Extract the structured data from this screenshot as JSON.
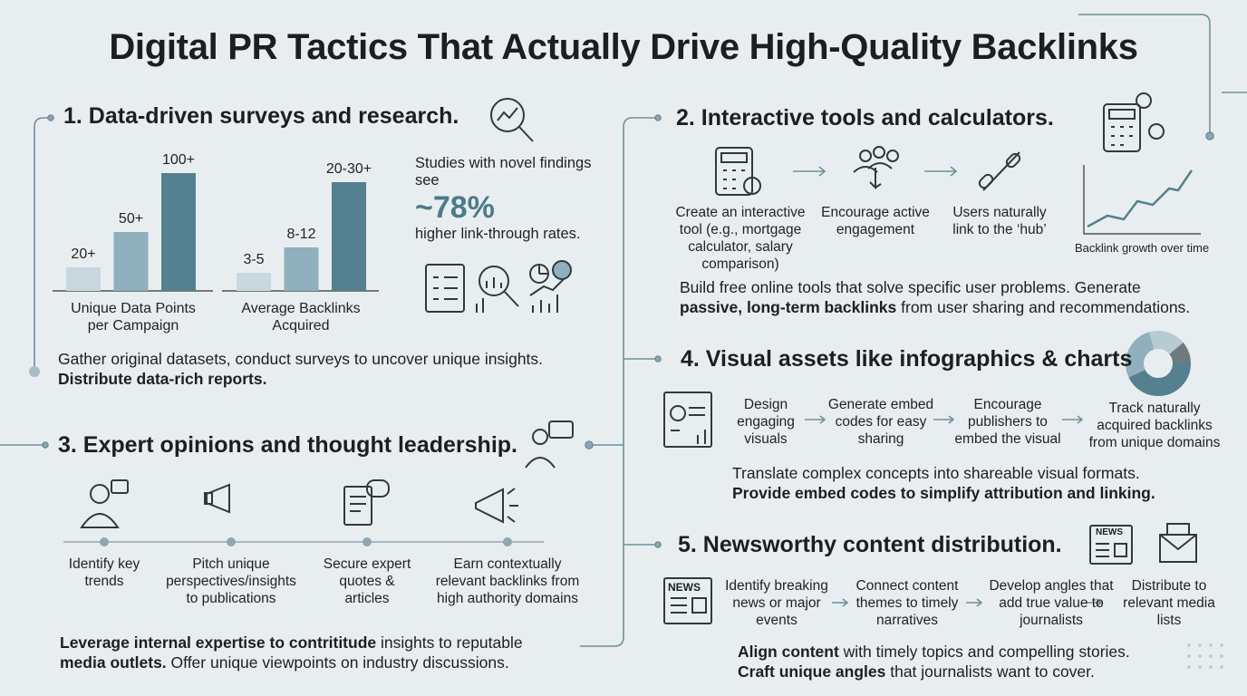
{
  "title": "Digital PR Tactics That Actually Drive High-Quality Backlinks",
  "sections": [
    {
      "heading": "1. Data-driven surveys and research.",
      "charts": [
        {
          "caption": "Unique Data Points per Campaign",
          "values": [
            20,
            50,
            100
          ],
          "value_labels": [
            "20+",
            "50+",
            "100+"
          ],
          "ylim": [
            0,
            100
          ],
          "colors": [
            "#c8d8de",
            "#8fb0bc",
            "#55808f"
          ]
        },
        {
          "caption": "Average Backlinks Acquired",
          "values": [
            5,
            12,
            30
          ],
          "value_labels": [
            "3-5",
            "8-12",
            "20-30+"
          ],
          "ylim": [
            0,
            30
          ],
          "colors": [
            "#c8d8de",
            "#8fb0bc",
            "#55808f"
          ]
        }
      ],
      "stat": {
        "lead": "Studies with novel findings see",
        "figure": "~78%",
        "tail": "higher link-through rates."
      },
      "description": [
        {
          "text": "Gather original datasets, conduct surveys to uncover unique insights."
        },
        {
          "strong": "Distribute data-rich reports."
        }
      ]
    },
    {
      "heading": "2. Interactive tools and calculators.",
      "steps": [
        "Create an interactive tool (e.g., mortgage calculator, salary comparison)",
        "Encourage active engagement",
        "Users naturally link to the ‘hub’"
      ],
      "chart_caption": "Backlink growth over time",
      "description": [
        {
          "text": "Build free online tools that solve specific user problems. Generate"
        },
        {
          "strong": "passive, long-term backlinks",
          "text": " from user sharing and recommendations."
        }
      ]
    },
    {
      "heading": "3. Expert opinions and thought leadership.",
      "steps": [
        "Identify key trends",
        "Pitch unique perspectives/insights to publications",
        "Secure expert quotes & articles",
        "Earn contextually relevant backlinks from high authority domains"
      ],
      "description": [
        {
          "strong": "Leverage internal expertise to contrititude",
          "text": " insights to reputable"
        },
        {
          "strong": "media outlets.",
          "text": " Offer unique viewpoints on industry discussions."
        }
      ]
    },
    {
      "heading": "4. Visual assets like infographics & charts",
      "steps": [
        "Design engaging visuals",
        "Generate embed codes for easy sharing",
        "Encourage publishers to embed the visual",
        "Track naturally acquired backlinks from unique domains"
      ],
      "description": [
        {
          "text": "Translate complex concepts into shareable visual formats."
        },
        {
          "strong": "Provide embed codes to simplify attribution and linking."
        }
      ]
    },
    {
      "heading": "5. Newsworthy content distribution.",
      "icon_label": "NEWS",
      "steps": [
        "Identify breaking news or major events",
        "Connect content themes to timely narratives",
        "Develop angles that add true value to journalists",
        "Distribute to relevant media lists"
      ],
      "description": [
        {
          "strong": "Align content",
          "text": " with timely topics and compelling stories."
        },
        {
          "strong": "Craft unique angles",
          "text": " that journalists want to cover."
        }
      ]
    }
  ]
}
